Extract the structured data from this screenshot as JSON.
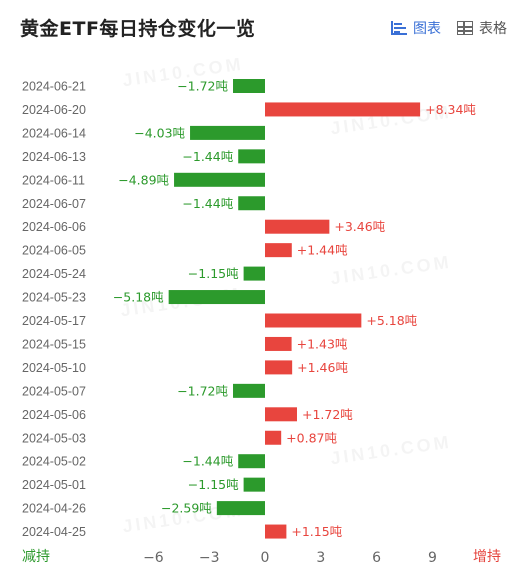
{
  "header": {
    "title": "黄金ETF每日持仓变化一览",
    "view_chart_label": "图表",
    "view_table_label": "表格"
  },
  "watermark_text": "JIN10.COM",
  "footer": {
    "left_label": "减持",
    "right_label": "增持"
  },
  "colors": {
    "positive": "#e8453e",
    "negative": "#2c9a2c",
    "axis_text": "#666666",
    "active": "#3a70d6"
  },
  "chart_data": {
    "type": "bar",
    "orientation": "horizontal",
    "categories": [
      "2024-06-21",
      "2024-06-20",
      "2024-06-14",
      "2024-06-13",
      "2024-06-11",
      "2024-06-07",
      "2024-06-06",
      "2024-06-05",
      "2024-05-24",
      "2024-05-23",
      "2024-05-17",
      "2024-05-15",
      "2024-05-10",
      "2024-05-07",
      "2024-05-06",
      "2024-05-03",
      "2024-05-02",
      "2024-05-01",
      "2024-04-26",
      "2024-04-25"
    ],
    "values": [
      -1.72,
      8.34,
      -4.03,
      -1.44,
      -4.89,
      -1.44,
      3.46,
      1.44,
      -1.15,
      -5.18,
      5.18,
      1.43,
      1.46,
      -1.72,
      1.72,
      0.87,
      -1.44,
      -1.15,
      -2.59,
      1.15
    ],
    "labels": [
      "−1.72吨",
      "+8.34吨",
      "−4.03吨",
      "−1.44吨",
      "−4.89吨",
      "−1.44吨",
      "+3.46吨",
      "+1.44吨",
      "−1.15吨",
      "−5.18吨",
      "+5.18吨",
      "+1.43吨",
      "+1.46吨",
      "−1.72吨",
      "+1.72吨",
      "+0.87吨",
      "−1.44吨",
      "−1.15吨",
      "−2.59吨",
      "+1.15吨"
    ],
    "xticks": [
      -6,
      -3,
      0,
      3,
      6,
      9
    ],
    "xtick_labels": [
      "−6",
      "−3",
      "0",
      "3",
      "6",
      "9"
    ],
    "xlim": [
      -8,
      13
    ],
    "grid": false
  }
}
